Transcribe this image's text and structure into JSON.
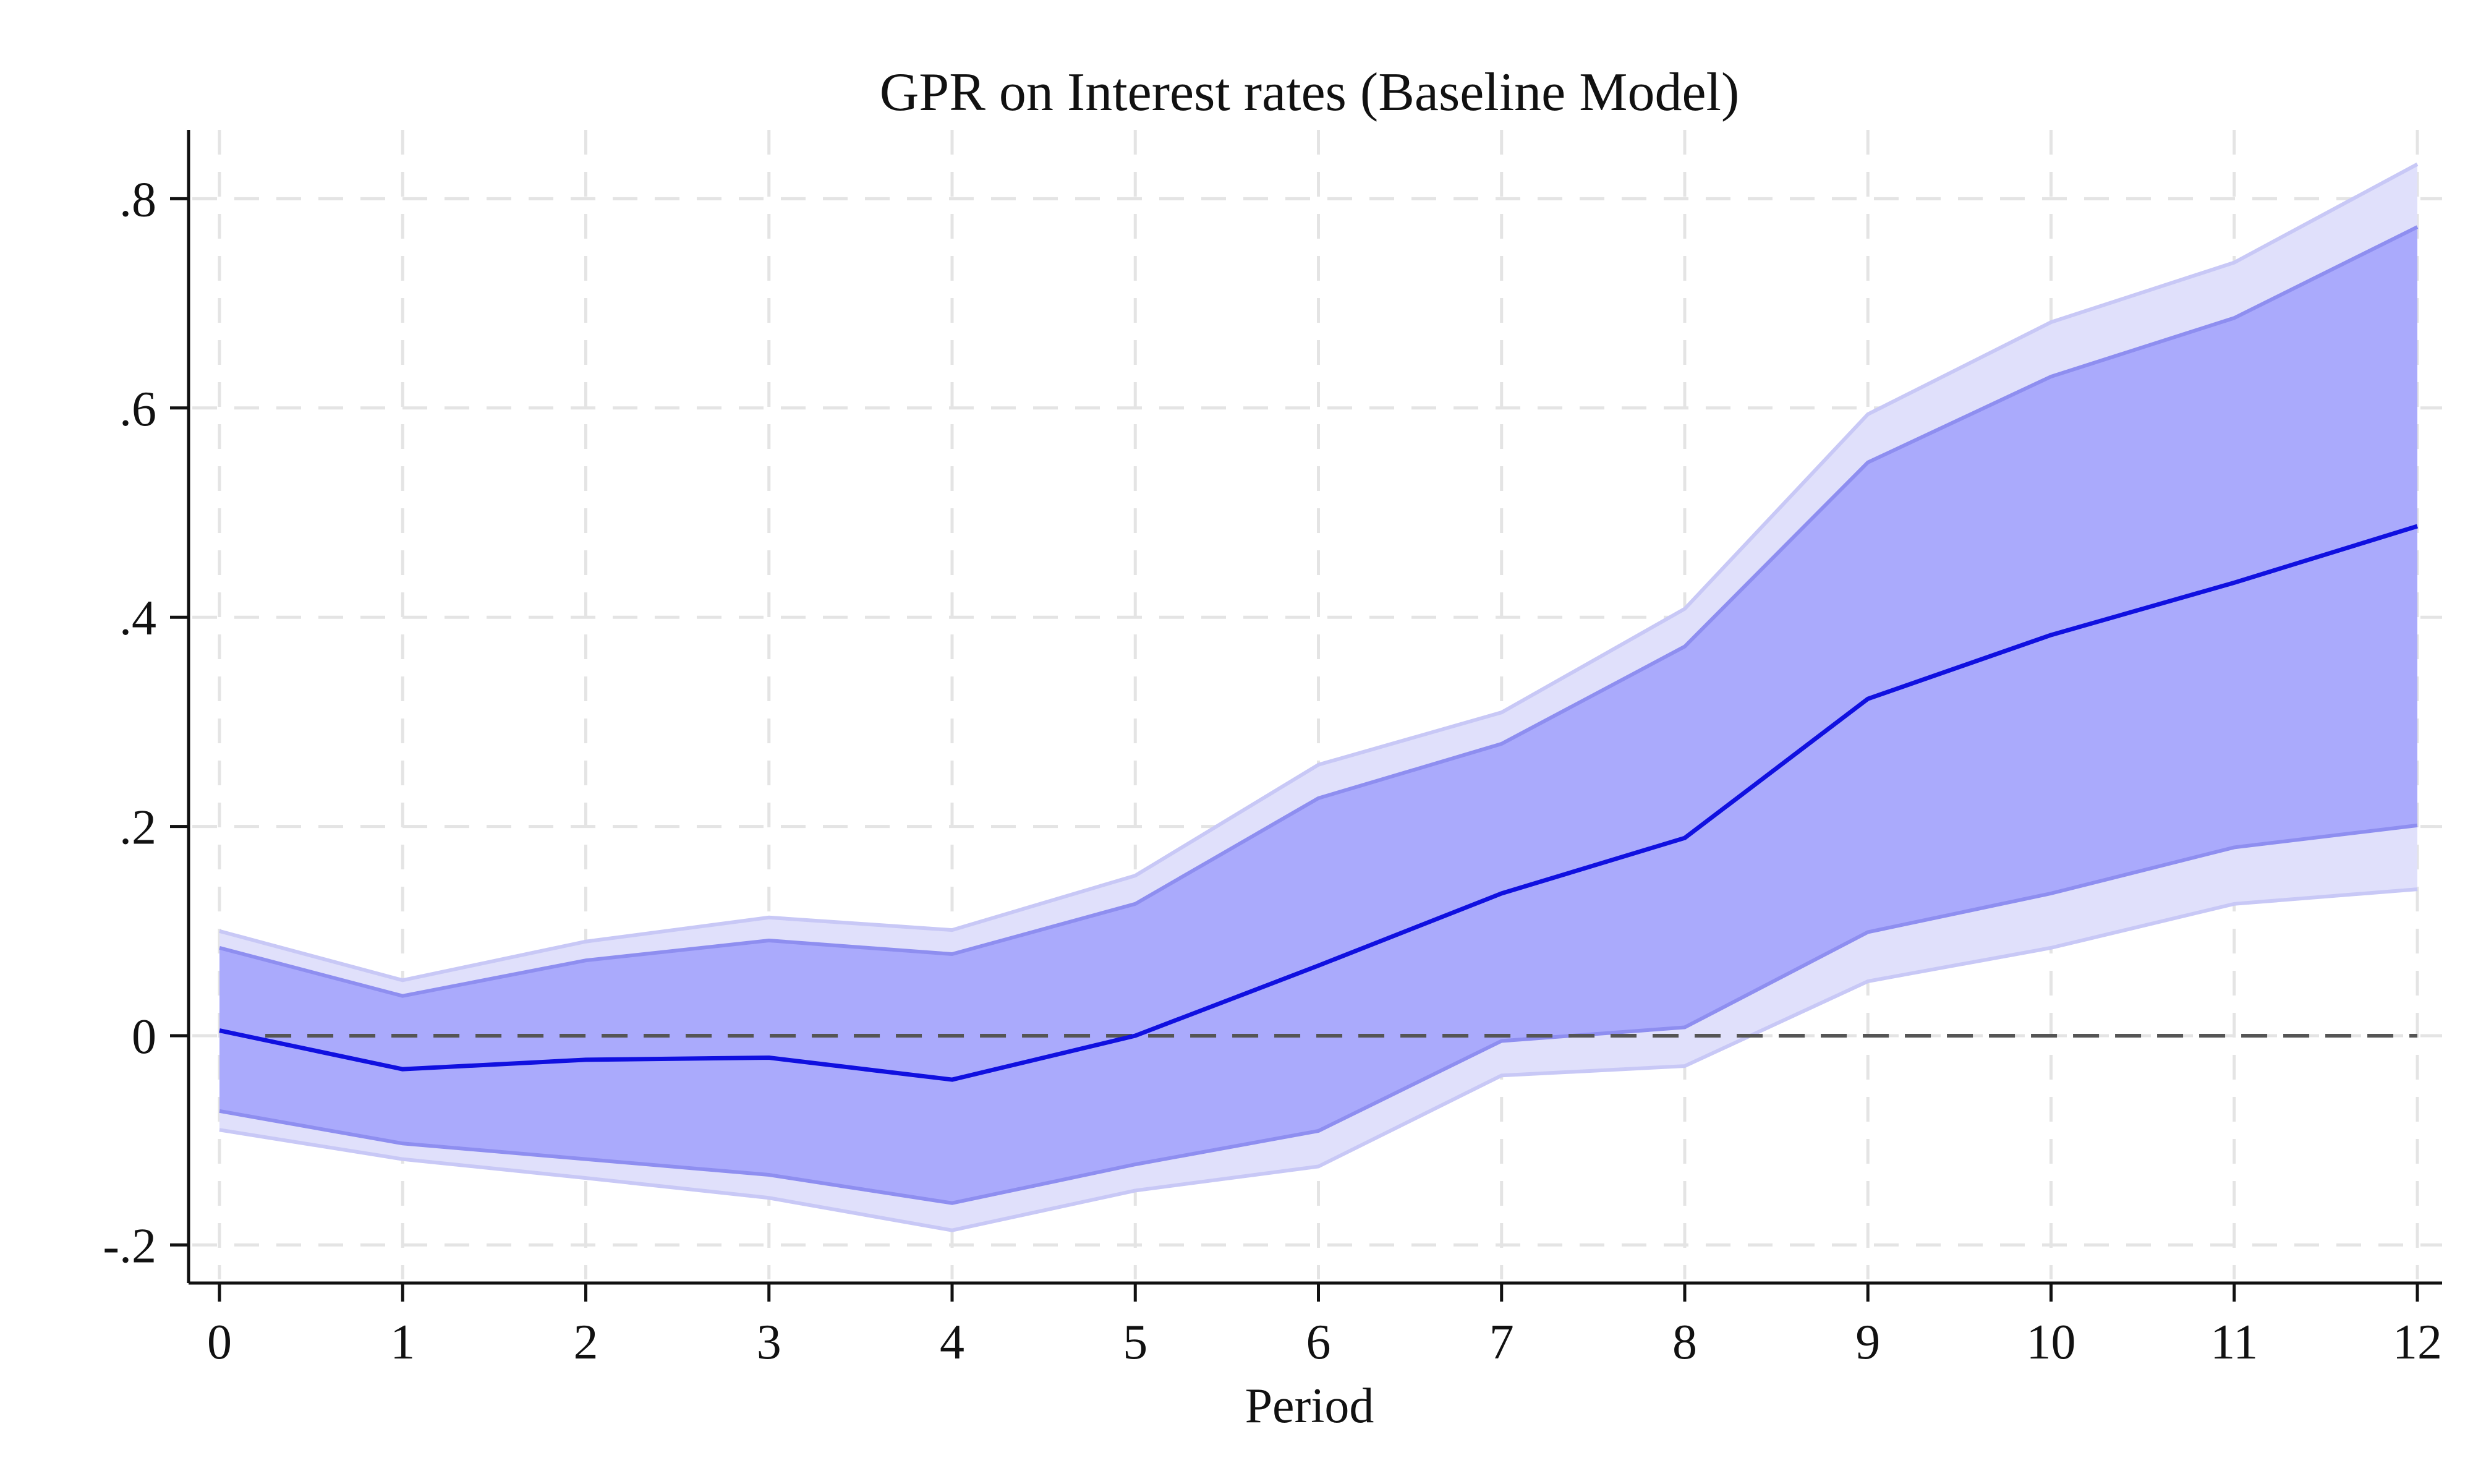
{
  "chart_data": {
    "type": "line",
    "title": "GPR on Interest rates (Baseline Model)",
    "xlabel": "Period",
    "ylabel": "",
    "xlim": [
      0,
      12
    ],
    "ylim": [
      -0.23,
      0.87
    ],
    "x": [
      0,
      1,
      2,
      3,
      4,
      5,
      6,
      7,
      8,
      9,
      10,
      11,
      12
    ],
    "x_ticks": [
      {
        "value": 0,
        "label": "0"
      },
      {
        "value": 1,
        "label": "1"
      },
      {
        "value": 2,
        "label": "2"
      },
      {
        "value": 3,
        "label": "3"
      },
      {
        "value": 4,
        "label": "4"
      },
      {
        "value": 5,
        "label": "5"
      },
      {
        "value": 6,
        "label": "6"
      },
      {
        "value": 7,
        "label": "7"
      },
      {
        "value": 8,
        "label": "8"
      },
      {
        "value": 9,
        "label": "9"
      },
      {
        "value": 10,
        "label": "10"
      },
      {
        "value": 11,
        "label": "11"
      },
      {
        "value": 12,
        "label": "12"
      }
    ],
    "y_ticks": [
      {
        "value": -0.2,
        "label": "-.2"
      },
      {
        "value": 0,
        "label": "0"
      },
      {
        "value": 0.2,
        "label": ".2"
      },
      {
        "value": 0.4,
        "label": ".4"
      },
      {
        "value": 0.6,
        "label": ".6"
      },
      {
        "value": 0.8,
        "label": ".8"
      }
    ],
    "grid": true,
    "reference_line": 0,
    "series": [
      {
        "role": "estimate",
        "values": [
          0.005,
          -0.032,
          -0.023,
          -0.021,
          -0.042,
          0.0,
          0.067,
          0.136,
          0.189,
          0.322,
          0.383,
          0.433,
          0.487
        ],
        "color": "#1010e0"
      }
    ],
    "bands": [
      {
        "role": "outer",
        "lower": [
          -0.09,
          -0.118,
          -0.136,
          -0.155,
          -0.186,
          -0.148,
          -0.125,
          -0.038,
          -0.029,
          0.052,
          0.084,
          0.126,
          0.14
        ],
        "upper": [
          0.1,
          0.053,
          0.09,
          0.113,
          0.101,
          0.153,
          0.259,
          0.309,
          0.408,
          0.594,
          0.682,
          0.739,
          0.833
        ],
        "color": "#e0e0fb"
      },
      {
        "role": "inner",
        "lower": [
          -0.072,
          -0.103,
          -0.118,
          -0.133,
          -0.16,
          -0.123,
          -0.091,
          -0.005,
          0.008,
          0.099,
          0.136,
          0.18,
          0.201
        ],
        "upper": [
          0.084,
          0.038,
          0.072,
          0.091,
          0.078,
          0.126,
          0.227,
          0.279,
          0.372,
          0.548,
          0.63,
          0.686,
          0.773
        ],
        "color": "#aaaafc"
      }
    ]
  }
}
